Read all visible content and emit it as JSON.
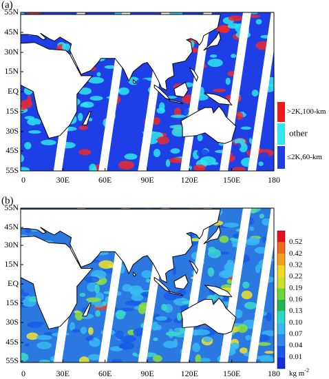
{
  "panels": [
    {
      "label": "(a)",
      "lat_labels": [
        "55N",
        "45N",
        "30N",
        "15N",
        "EQ",
        "15S",
        "30S",
        "45S",
        "55S"
      ],
      "lon_labels": [
        "0",
        "30E",
        "60E",
        "90E",
        "120E",
        "150E",
        "180"
      ],
      "legend": [
        ">2K,100-km",
        "other",
        "≤2K,60-km"
      ]
    },
    {
      "label": "(b)",
      "lat_labels": [
        "55N",
        "45N",
        "30N",
        "15N",
        "EQ",
        "15S",
        "30S",
        "45S",
        "55S"
      ],
      "lon_labels": [
        "0",
        "30E",
        "60E",
        "90E",
        "120E",
        "150E",
        "180"
      ],
      "colorbar": [
        "0.52",
        "0.42",
        "0.32",
        "0.22",
        "0.19",
        "0.16",
        "0.13",
        "0.10",
        "0.07",
        "0.04",
        "0.01"
      ],
      "unit": "kg m",
      "unit_sup": "-2"
    }
  ]
}
